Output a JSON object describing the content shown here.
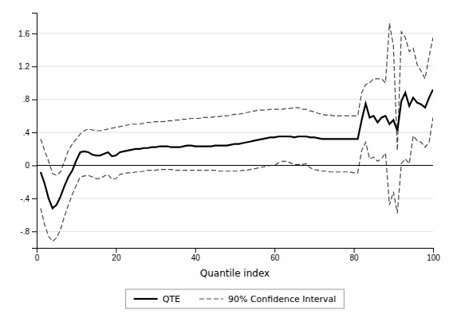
{
  "chart_data": {
    "type": "line",
    "xlabel": "Quantile index",
    "xlim": [
      0,
      100
    ],
    "ylim": [
      -1.0,
      1.85
    ],
    "xticks": [
      0,
      20,
      40,
      60,
      80,
      100
    ],
    "yticks": [
      {
        "value": -0.8,
        "label": "-.8"
      },
      {
        "value": -0.4,
        "label": "-.4"
      },
      0,
      {
        "value": 0.4,
        "label": ".4"
      },
      {
        "value": 0.8,
        "label": ".8"
      },
      1.2,
      1.6
    ],
    "grid": "y",
    "legend": "bottom",
    "hline": 0,
    "x": [
      1,
      2,
      3,
      4,
      5,
      6,
      7,
      8,
      9,
      10,
      11,
      12,
      13,
      14,
      15,
      16,
      17,
      18,
      19,
      20,
      21,
      22,
      23,
      24,
      25,
      26,
      27,
      28,
      29,
      30,
      31,
      32,
      33,
      34,
      35,
      36,
      37,
      38,
      39,
      40,
      41,
      42,
      43,
      44,
      45,
      46,
      47,
      48,
      49,
      50,
      51,
      52,
      53,
      54,
      55,
      56,
      57,
      58,
      59,
      60,
      61,
      62,
      63,
      64,
      65,
      66,
      67,
      68,
      69,
      70,
      71,
      72,
      73,
      74,
      75,
      76,
      77,
      78,
      79,
      80,
      81,
      82,
      83,
      84,
      85,
      86,
      87,
      88,
      89,
      90,
      91,
      92,
      93,
      94,
      95,
      96,
      97,
      98,
      99,
      100
    ],
    "series": [
      {
        "name": "QTE",
        "color": "#000000",
        "line_style": "solid",
        "values": [
          -0.08,
          -0.22,
          -0.4,
          -0.52,
          -0.48,
          -0.38,
          -0.25,
          -0.14,
          -0.06,
          0.06,
          0.16,
          0.17,
          0.16,
          0.13,
          0.12,
          0.12,
          0.14,
          0.16,
          0.11,
          0.12,
          0.16,
          0.17,
          0.18,
          0.19,
          0.2,
          0.2,
          0.21,
          0.21,
          0.22,
          0.22,
          0.23,
          0.23,
          0.23,
          0.22,
          0.22,
          0.22,
          0.23,
          0.24,
          0.24,
          0.23,
          0.23,
          0.23,
          0.23,
          0.23,
          0.24,
          0.24,
          0.24,
          0.24,
          0.25,
          0.26,
          0.26,
          0.27,
          0.28,
          0.29,
          0.3,
          0.31,
          0.32,
          0.33,
          0.34,
          0.34,
          0.35,
          0.35,
          0.35,
          0.35,
          0.34,
          0.35,
          0.35,
          0.35,
          0.34,
          0.34,
          0.33,
          0.32,
          0.32,
          0.32,
          0.32,
          0.32,
          0.32,
          0.32,
          0.32,
          0.32,
          0.32,
          0.55,
          0.75,
          0.58,
          0.6,
          0.52,
          0.58,
          0.6,
          0.5,
          0.55,
          0.42,
          0.78,
          0.88,
          0.72,
          0.82,
          0.76,
          0.74,
          0.7,
          0.82,
          0.92
        ]
      },
      {
        "name": "90% Confidence Interval",
        "color": "#444444",
        "line_style": "dashed",
        "upper": [
          0.32,
          0.18,
          0.05,
          -0.1,
          -0.12,
          -0.08,
          0.05,
          0.18,
          0.26,
          0.32,
          0.38,
          0.42,
          0.44,
          0.43,
          0.42,
          0.42,
          0.43,
          0.44,
          0.45,
          0.46,
          0.47,
          0.48,
          0.49,
          0.5,
          0.5,
          0.5,
          0.51,
          0.52,
          0.52,
          0.53,
          0.53,
          0.53,
          0.54,
          0.54,
          0.55,
          0.55,
          0.56,
          0.56,
          0.57,
          0.57,
          0.57,
          0.58,
          0.58,
          0.58,
          0.59,
          0.59,
          0.6,
          0.6,
          0.61,
          0.62,
          0.62,
          0.63,
          0.64,
          0.65,
          0.66,
          0.67,
          0.67,
          0.67,
          0.68,
          0.68,
          0.68,
          0.68,
          0.69,
          0.69,
          0.7,
          0.7,
          0.68,
          0.68,
          0.66,
          0.65,
          0.63,
          0.62,
          0.61,
          0.61,
          0.6,
          0.6,
          0.6,
          0.6,
          0.6,
          0.6,
          0.6,
          0.88,
          0.98,
          1.0,
          1.05,
          1.05,
          1.05,
          1.0,
          1.72,
          1.45,
          0.18,
          1.62,
          1.55,
          1.38,
          1.42,
          1.22,
          1.14,
          1.05,
          1.32,
          1.55
        ],
        "lower": [
          -0.52,
          -0.72,
          -0.86,
          -0.92,
          -0.88,
          -0.78,
          -0.62,
          -0.48,
          -0.35,
          -0.24,
          -0.14,
          -0.13,
          -0.12,
          -0.14,
          -0.16,
          -0.16,
          -0.13,
          -0.11,
          -0.17,
          -0.16,
          -0.11,
          -0.1,
          -0.09,
          -0.09,
          -0.08,
          -0.08,
          -0.07,
          -0.06,
          -0.06,
          -0.06,
          -0.05,
          -0.05,
          -0.05,
          -0.05,
          -0.06,
          -0.06,
          -0.06,
          -0.06,
          -0.06,
          -0.06,
          -0.06,
          -0.06,
          -0.06,
          -0.06,
          -0.06,
          -0.07,
          -0.07,
          -0.07,
          -0.07,
          -0.07,
          -0.07,
          -0.06,
          -0.06,
          -0.05,
          -0.04,
          -0.03,
          -0.02,
          -0.01,
          0.0,
          0.0,
          0.03,
          0.05,
          0.05,
          0.03,
          0.01,
          0.01,
          0.01,
          0.02,
          -0.03,
          -0.05,
          -0.06,
          -0.07,
          -0.07,
          -0.08,
          -0.08,
          -0.08,
          -0.08,
          -0.08,
          -0.08,
          -0.09,
          -0.09,
          0.18,
          0.28,
          0.08,
          0.1,
          0.05,
          0.08,
          0.15,
          -0.48,
          -0.32,
          -0.58,
          0.02,
          0.08,
          0.02,
          0.36,
          0.3,
          0.28,
          0.22,
          0.28,
          0.58
        ]
      }
    ]
  }
}
